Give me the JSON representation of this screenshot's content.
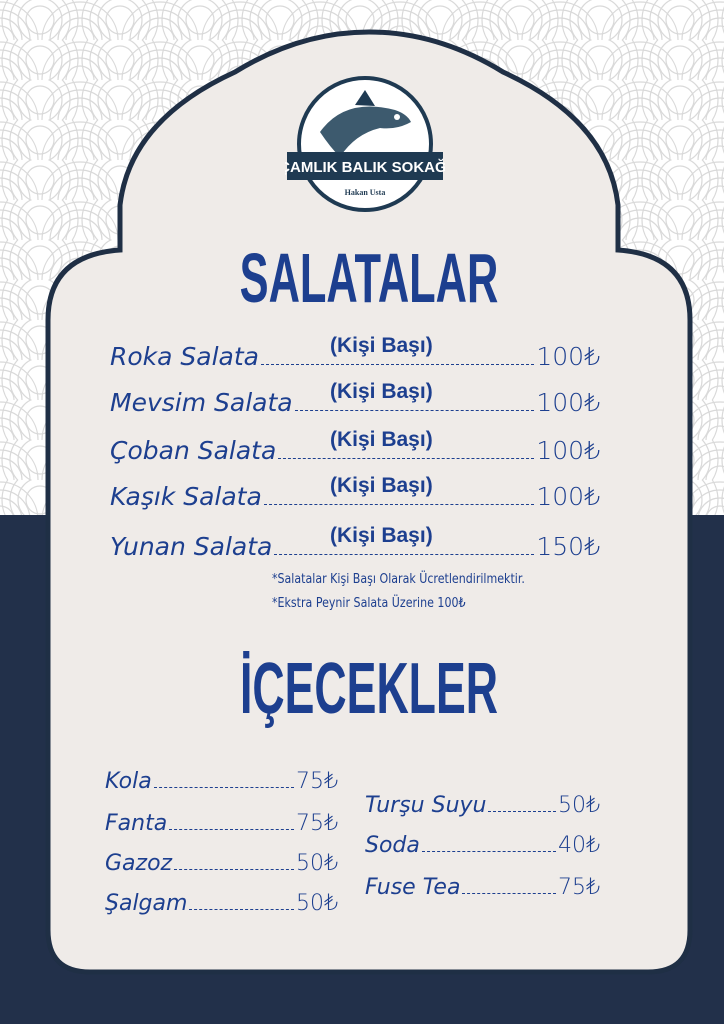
{
  "colors": {
    "navy": "#22304a",
    "card": "#efebe8",
    "text": "#1d3f8f"
  },
  "logo": {
    "name": "ÇAMLIK BALIK SOKAĞI",
    "subtitle": "Hakan Usta",
    "icon": "tuna-fish-icon"
  },
  "salads": {
    "title": "SALATALAR",
    "per_person": "(Kişi Başı)",
    "items": [
      {
        "name": "Roka Salata",
        "price": "100₺"
      },
      {
        "name": "Mevsim Salata",
        "price": "100₺"
      },
      {
        "name": "Çoban Salata",
        "price": "100₺"
      },
      {
        "name": "Kaşık Salata",
        "price": "100₺"
      },
      {
        "name": "Yunan Salata",
        "price": "150₺"
      }
    ],
    "notes": [
      "*Salatalar Kişi Başı Olarak Ücretlendirilmektir.",
      "*Ekstra Peynir Salata Üzerine 100₺"
    ]
  },
  "drinks": {
    "title": "İÇECEKLER",
    "left": [
      {
        "name": "Kola",
        "price": "75₺"
      },
      {
        "name": "Fanta",
        "price": "75₺"
      },
      {
        "name": "Gazoz",
        "price": "50₺"
      },
      {
        "name": "Şalgam",
        "price": "50₺"
      }
    ],
    "right": [
      {
        "name": "Turşu Suyu",
        "price": "50₺"
      },
      {
        "name": "Soda",
        "price": "40₺"
      },
      {
        "name": "Fuse Tea",
        "price": "75₺"
      }
    ]
  }
}
